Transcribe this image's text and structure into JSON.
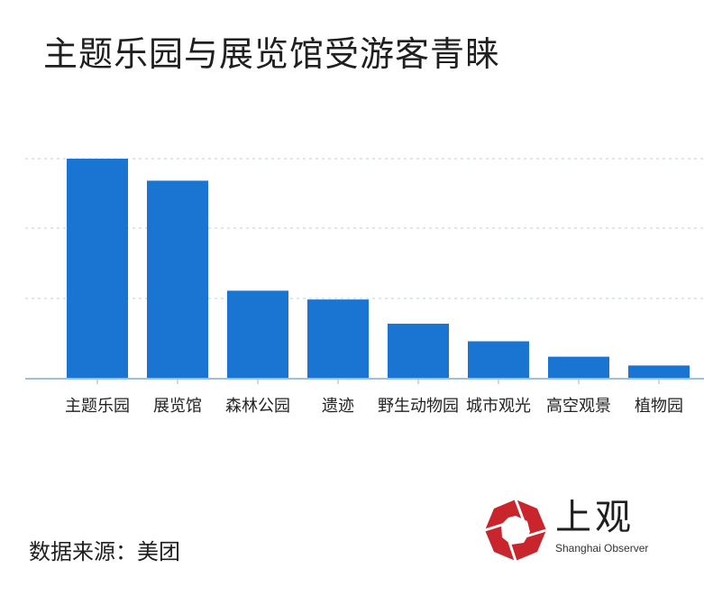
{
  "title": "主题乐园与展览馆受游客青睐",
  "source": "数据来源：美团",
  "logo": {
    "name": "上观",
    "subtitle": "Shanghai Observer",
    "color": "#c8252c"
  },
  "colors": {
    "bar": "#1a74d2",
    "axis": "#9fc0dc",
    "grid": "#c9d6e4",
    "label": "#222222"
  },
  "chart_data": {
    "type": "bar",
    "title": "主题乐园与展览馆受游客青睐",
    "xlabel": "",
    "ylabel": "",
    "y_ticks_shown": false,
    "grid": true,
    "ylim": [
      0,
      100
    ],
    "categories": [
      "主题乐园",
      "展览馆",
      "森林公园",
      "遗迹",
      "野生动物园",
      "城市观光",
      "高空观景",
      "植物园"
    ],
    "values": [
      100,
      90,
      40,
      36,
      25,
      17,
      10,
      6
    ]
  }
}
